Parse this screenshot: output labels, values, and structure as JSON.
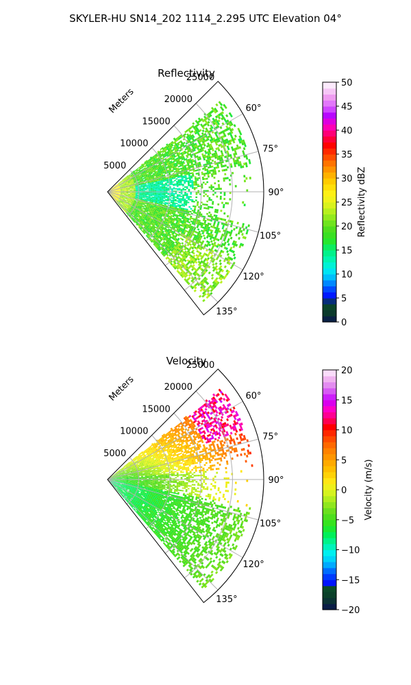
{
  "figure_title": "SKYLER-HU  SN14_202  1114_2.295 UTC Elevation 04°",
  "chart_data": [
    {
      "type": "heatmap",
      "projection": "polar-sector",
      "title": "Reflectivity",
      "radial_label": "Meters",
      "radial_ticks": [
        5000,
        10000,
        15000,
        20000,
        25000
      ],
      "radial_tick_labels": [
        "5000",
        "10000",
        "15000",
        "20000",
        "25000"
      ],
      "range_max_m": 25000,
      "azimuth_min_deg": 45,
      "azimuth_max_deg": 142,
      "angular_ticks": [
        60,
        75,
        90,
        105,
        120,
        135
      ],
      "angular_tick_labels": [
        "60°",
        "75°",
        "90°",
        "105°",
        "120°",
        "135°"
      ],
      "grid": true,
      "colorbar": {
        "label": "Reflectivity dBZ",
        "min": 0,
        "max": 50,
        "ticks": [
          0,
          5,
          10,
          15,
          20,
          25,
          30,
          35,
          40,
          45,
          50
        ],
        "tick_labels": [
          "0",
          "5",
          "10",
          "15",
          "20",
          "25",
          "30",
          "35",
          "40",
          "45",
          "50"
        ],
        "stops": [
          [
            0,
            "#0a1450"
          ],
          [
            2,
            "#0b3d2a"
          ],
          [
            4,
            "#0b4a2a"
          ],
          [
            5,
            "#0000ff"
          ],
          [
            7,
            "#0050ff"
          ],
          [
            9,
            "#00b4ff"
          ],
          [
            11,
            "#00f0f0"
          ],
          [
            13,
            "#00f5b4"
          ],
          [
            15,
            "#00f078"
          ],
          [
            17,
            "#28e628"
          ],
          [
            19,
            "#46dc1e"
          ],
          [
            21,
            "#78e61e"
          ],
          [
            23,
            "#b4f01e"
          ],
          [
            25,
            "#eaf51e"
          ],
          [
            27,
            "#fff014"
          ],
          [
            29,
            "#ffd200"
          ],
          [
            31,
            "#ffaa00"
          ],
          [
            33,
            "#ff7800"
          ],
          [
            35,
            "#ff3c00"
          ],
          [
            37,
            "#ff0000"
          ],
          [
            39,
            "#ff0064"
          ],
          [
            41,
            "#ff00c8"
          ],
          [
            43,
            "#b400ff"
          ],
          [
            45,
            "#dc64ff"
          ],
          [
            47,
            "#f0a0f0"
          ],
          [
            49,
            "#fae6fa"
          ],
          [
            50,
            "#fff0ff"
          ]
        ]
      },
      "field_description": "radar_reflectivity_sector"
    },
    {
      "type": "heatmap",
      "projection": "polar-sector",
      "title": "Velocity",
      "radial_label": "Meters",
      "radial_ticks": [
        5000,
        10000,
        15000,
        20000,
        25000
      ],
      "radial_tick_labels": [
        "5000",
        "10000",
        "15000",
        "20000",
        "25000"
      ],
      "range_max_m": 25000,
      "azimuth_min_deg": 45,
      "azimuth_max_deg": 142,
      "angular_ticks": [
        60,
        75,
        90,
        105,
        120,
        135
      ],
      "angular_tick_labels": [
        "60°",
        "75°",
        "90°",
        "105°",
        "120°",
        "135°"
      ],
      "grid": true,
      "colorbar": {
        "label": "Velocity (m/s)",
        "min": -20,
        "max": 20,
        "ticks": [
          -20,
          -15,
          -10,
          -5,
          0,
          5,
          10,
          15,
          20
        ],
        "tick_labels": [
          "−20",
          "−15",
          "−10",
          "−5",
          "0",
          "5",
          "10",
          "15",
          "20"
        ],
        "stops": [
          [
            -20,
            "#0a1450"
          ],
          [
            -18,
            "#0b3d2a"
          ],
          [
            -16.5,
            "#0b4a2a"
          ],
          [
            -16,
            "#0000ff"
          ],
          [
            -14,
            "#0050ff"
          ],
          [
            -12,
            "#00c8ff"
          ],
          [
            -10.5,
            "#00f0f0"
          ],
          [
            -9,
            "#00f5a0"
          ],
          [
            -7.5,
            "#00f05a"
          ],
          [
            -6,
            "#28e61e"
          ],
          [
            -4,
            "#5adc1e"
          ],
          [
            -2,
            "#a0eb1e"
          ],
          [
            0,
            "#e6f51e"
          ],
          [
            1.5,
            "#ffe614"
          ],
          [
            3,
            "#ffc800"
          ],
          [
            5,
            "#ffa000"
          ],
          [
            7,
            "#ff7800"
          ],
          [
            9,
            "#ff3c00"
          ],
          [
            10.5,
            "#ff0000"
          ],
          [
            12,
            "#ff0078"
          ],
          [
            13.5,
            "#ff00c8"
          ],
          [
            15,
            "#c800ff"
          ],
          [
            17,
            "#dc78f0"
          ],
          [
            18.5,
            "#f0b4f0"
          ],
          [
            20,
            "#fff0ff"
          ]
        ]
      },
      "field_description": "radar_velocity_sector"
    }
  ]
}
